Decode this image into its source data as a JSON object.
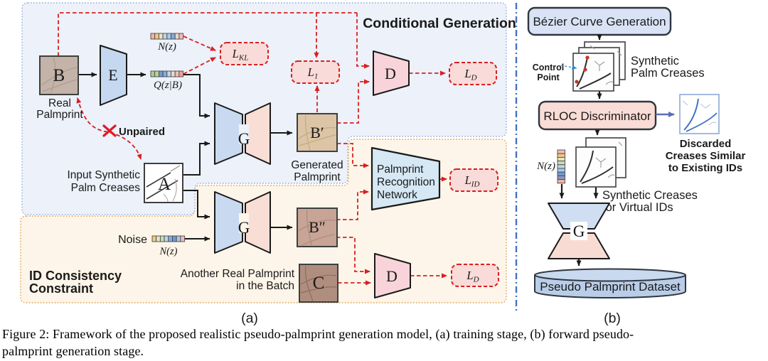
{
  "figure": {
    "caption_line1": "Figure 2: Framework of the proposed realistic pseudo-palmprint generation model, (a) training stage, (b) forward pseudo-",
    "caption_line2": "palmprint generation stage."
  },
  "panel_a": {
    "label": "(a)",
    "region_conditional": "Conditional Generation",
    "region_id_line1": "ID Consistency",
    "region_id_line2": "Constraint",
    "node_b": "B",
    "real_palmprint_1": "Real",
    "real_palmprint_2": "Palmprint",
    "node_e": "E",
    "nz_top": "N(z)",
    "qzb": "Q(z|B)",
    "loss_kl": {
      "base": "L",
      "sub": "KL"
    },
    "loss_1": {
      "base": "L",
      "sub": "1"
    },
    "unpaired": "Unpaired",
    "input_synthetic_1": "Input Synthetic",
    "input_synthetic_2": "Palm Creases",
    "node_a": "A",
    "node_g1": "G",
    "node_g2": "G",
    "node_b_prime": "B′",
    "generated_1": "Generated",
    "generated_2": "Palmprint",
    "node_d1": "D",
    "loss_d1": {
      "base": "L",
      "sub": "D"
    },
    "prn_1": "Palmprint",
    "prn_2": "Recognition",
    "prn_3": "Network",
    "loss_id": {
      "base": "L",
      "sub": "ID"
    },
    "noise": "Noise",
    "nz_bottom": "N(z)",
    "node_b_dprime": "B″",
    "another_1": "Another Real Palmprint",
    "another_2": "in the Batch",
    "node_c": "C",
    "node_d2": "D",
    "loss_d2": {
      "base": "L",
      "sub": "D"
    },
    "strip_nz": [
      "#f2b2a0",
      "#f2c87e",
      "#e9e3c6",
      "#bcd6ee",
      "#a9c9e8",
      "#85aad8",
      "#f2d5ca",
      "#f3bcb8"
    ],
    "strip_qzb": [
      "#a5cd8c",
      "#b8d79d",
      "#7099d0",
      "#88abd9",
      "#bcd6ee",
      "#f2d5ca",
      "#f3bcb8",
      "#f0a394"
    ],
    "strip_noise": [
      "#f2c87e",
      "#e9e3c6",
      "#c4deb0",
      "#bcd6ee",
      "#88abd9",
      "#7099d0",
      "#a9c9e8",
      "#f3bcb8"
    ]
  },
  "panel_b": {
    "label": "(b)",
    "bezier": "Bézier Curve Generation",
    "control_1": "Control",
    "control_2": "Point",
    "synthetic_palm_1": "Synthetic",
    "synthetic_palm_2": "Palm Creases",
    "rloc": "RLOC Discriminator",
    "discarded_1": "Discarded",
    "discarded_2": "Creases Similar",
    "discarded_3": "to Existing IDs",
    "nz": "N(z)",
    "creases_virtual_1": "Synthetic Creases",
    "creases_virtual_2": "for Virtual IDs",
    "node_g": "G",
    "dataset": "Pseudo Palmprint Dataset",
    "strip_nz_vertical": [
      "#f3bcb8",
      "#f2c87e",
      "#e9e3c6",
      "#c4deb0",
      "#bcd6ee",
      "#a9c9e8",
      "#7099d0",
      "#8898c8",
      "#f2b2a0"
    ]
  },
  "colors": {
    "loss_red": "#d91f1f",
    "conditional_blue": "#2e75b6",
    "id_orange": "#c1762a",
    "region_blue_fill": "#ecf1fa",
    "region_orange_fill": "#fdf5e9",
    "region_blue_border": "#96abdc",
    "region_orange_border": "#dd9f42",
    "separator_blue": "#4472c4",
    "discarded_blue": "#5b76bd",
    "control_point_blue": "#2e86d4",
    "encoder_blue": "#c5d8f0",
    "generator_left_blue": "#c9daf0",
    "generator_right_pink": "#f9ded5",
    "discriminator_pink": "#f8d4da",
    "loss_box_pink": "#f9dbd9"
  }
}
